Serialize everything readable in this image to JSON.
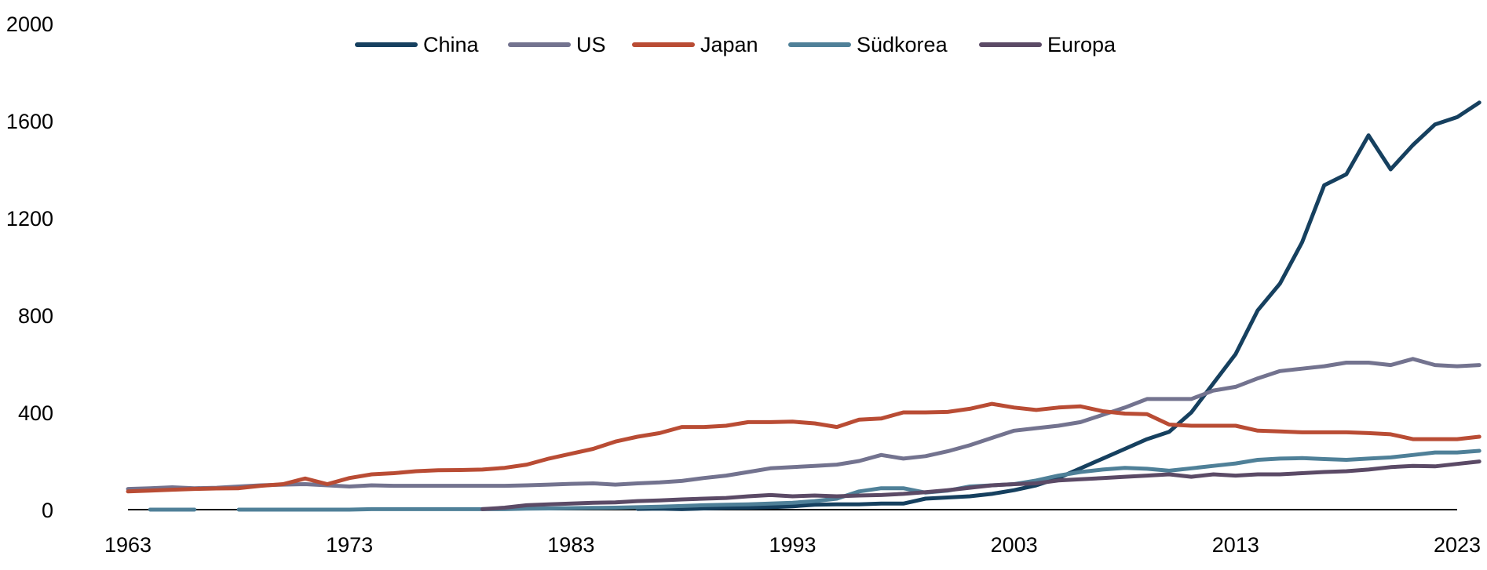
{
  "chart_data": {
    "type": "line",
    "title": "",
    "xlabel": "",
    "ylabel": "",
    "xlim": [
      1963,
      2023
    ],
    "ylim": [
      0,
      2000
    ],
    "x_ticks": [
      "1963",
      "1973",
      "1983",
      "1993",
      "2003",
      "2013",
      "2023"
    ],
    "y_ticks": [
      "0",
      "400",
      "800",
      "1200",
      "1600",
      "2000"
    ],
    "legend_position": "top-center",
    "grid": false,
    "series": [
      {
        "name": "China",
        "color": "#16405f",
        "points": [
          [
            1986,
            3
          ],
          [
            1987,
            4
          ],
          [
            1988,
            2
          ],
          [
            1989,
            5
          ],
          [
            1990,
            7
          ],
          [
            1991,
            8
          ],
          [
            1992,
            10
          ],
          [
            1993,
            14
          ],
          [
            1994,
            20
          ],
          [
            1995,
            22
          ],
          [
            1996,
            22
          ],
          [
            1997,
            25
          ],
          [
            1998,
            25
          ],
          [
            1999,
            45
          ],
          [
            2000,
            50
          ],
          [
            2001,
            55
          ],
          [
            2002,
            65
          ],
          [
            2003,
            80
          ],
          [
            2004,
            100
          ],
          [
            2005,
            130
          ],
          [
            2006,
            170
          ],
          [
            2007,
            210
          ],
          [
            2008,
            250
          ],
          [
            2009,
            290
          ],
          [
            2010,
            320
          ],
          [
            2011,
            400
          ],
          [
            2012,
            520
          ],
          [
            2013,
            640
          ],
          [
            2014,
            820
          ],
          [
            2015,
            930
          ],
          [
            2016,
            1100
          ],
          [
            2017,
            1335
          ],
          [
            2018,
            1380
          ],
          [
            2019,
            1540
          ],
          [
            2020,
            1400
          ],
          [
            2021,
            1500
          ],
          [
            2022,
            1585
          ],
          [
            2023,
            1615
          ],
          [
            2024,
            1675
          ]
        ]
      },
      {
        "name": "US",
        "color": "#73738f",
        "points": [
          [
            1963,
            85
          ],
          [
            1964,
            88
          ],
          [
            1965,
            92
          ],
          [
            1966,
            88
          ],
          [
            1967,
            90
          ],
          [
            1968,
            95
          ],
          [
            1969,
            100
          ],
          [
            1970,
            103
          ],
          [
            1971,
            105
          ],
          [
            1972,
            100
          ],
          [
            1973,
            95
          ],
          [
            1974,
            100
          ],
          [
            1975,
            98
          ],
          [
            1976,
            98
          ],
          [
            1977,
            98
          ],
          [
            1978,
            98
          ],
          [
            1979,
            98
          ],
          [
            1980,
            98
          ],
          [
            1981,
            100
          ],
          [
            1982,
            103
          ],
          [
            1983,
            106
          ],
          [
            1984,
            108
          ],
          [
            1985,
            103
          ],
          [
            1986,
            108
          ],
          [
            1987,
            112
          ],
          [
            1988,
            118
          ],
          [
            1989,
            130
          ],
          [
            1990,
            140
          ],
          [
            1991,
            155
          ],
          [
            1992,
            170
          ],
          [
            1993,
            175
          ],
          [
            1994,
            180
          ],
          [
            1995,
            185
          ],
          [
            1996,
            200
          ],
          [
            1997,
            225
          ],
          [
            1998,
            210
          ],
          [
            1999,
            220
          ],
          [
            2000,
            240
          ],
          [
            2001,
            265
          ],
          [
            2002,
            295
          ],
          [
            2003,
            325
          ],
          [
            2004,
            335
          ],
          [
            2005,
            345
          ],
          [
            2006,
            360
          ],
          [
            2007,
            390
          ],
          [
            2008,
            420
          ],
          [
            2009,
            455
          ],
          [
            2010,
            455
          ],
          [
            2011,
            455
          ],
          [
            2012,
            490
          ],
          [
            2013,
            505
          ],
          [
            2014,
            540
          ],
          [
            2015,
            570
          ],
          [
            2016,
            580
          ],
          [
            2017,
            590
          ],
          [
            2018,
            605
          ],
          [
            2019,
            605
          ],
          [
            2020,
            595
          ],
          [
            2021,
            620
          ],
          [
            2022,
            595
          ],
          [
            2023,
            590
          ],
          [
            2024,
            595
          ]
        ]
      },
      {
        "name": "Japan",
        "color": "#b94c34",
        "points": [
          [
            1963,
            75
          ],
          [
            1964,
            78
          ],
          [
            1965,
            82
          ],
          [
            1966,
            85
          ],
          [
            1967,
            87
          ],
          [
            1968,
            88
          ],
          [
            1969,
            98
          ],
          [
            1970,
            105
          ],
          [
            1971,
            128
          ],
          [
            1972,
            105
          ],
          [
            1973,
            130
          ],
          [
            1974,
            145
          ],
          [
            1975,
            150
          ],
          [
            1976,
            158
          ],
          [
            1977,
            162
          ],
          [
            1978,
            163
          ],
          [
            1979,
            165
          ],
          [
            1980,
            172
          ],
          [
            1981,
            185
          ],
          [
            1982,
            210
          ],
          [
            1983,
            230
          ],
          [
            1984,
            250
          ],
          [
            1985,
            280
          ],
          [
            1986,
            300
          ],
          [
            1987,
            315
          ],
          [
            1988,
            340
          ],
          [
            1989,
            340
          ],
          [
            1990,
            345
          ],
          [
            1991,
            360
          ],
          [
            1992,
            360
          ],
          [
            1993,
            362
          ],
          [
            1994,
            355
          ],
          [
            1995,
            340
          ],
          [
            1996,
            370
          ],
          [
            1997,
            375
          ],
          [
            1998,
            400
          ],
          [
            1999,
            400
          ],
          [
            2000,
            402
          ],
          [
            2001,
            415
          ],
          [
            2002,
            435
          ],
          [
            2003,
            420
          ],
          [
            2004,
            410
          ],
          [
            2005,
            420
          ],
          [
            2006,
            425
          ],
          [
            2007,
            405
          ],
          [
            2008,
            395
          ],
          [
            2009,
            393
          ],
          [
            2010,
            350
          ],
          [
            2011,
            345
          ],
          [
            2012,
            345
          ],
          [
            2013,
            345
          ],
          [
            2014,
            325
          ],
          [
            2015,
            322
          ],
          [
            2016,
            318
          ],
          [
            2017,
            318
          ],
          [
            2018,
            318
          ],
          [
            2019,
            315
          ],
          [
            2020,
            310
          ],
          [
            2021,
            290
          ],
          [
            2022,
            290
          ],
          [
            2023,
            290
          ],
          [
            2024,
            300
          ]
        ]
      },
      {
        "name": "Südkorea",
        "color": "#4f8098",
        "points": [
          [
            1964,
            0
          ],
          [
            1965,
            0
          ],
          [
            1966,
            0
          ],
          [
            1968,
            0
          ],
          [
            1969,
            0
          ],
          [
            1970,
            0
          ],
          [
            1971,
            0
          ],
          [
            1972,
            0
          ],
          [
            1973,
            0
          ],
          [
            1974,
            2
          ],
          [
            1975,
            2
          ],
          [
            1976,
            2
          ],
          [
            1977,
            2
          ],
          [
            1978,
            2
          ],
          [
            1979,
            2
          ],
          [
            1980,
            2
          ],
          [
            1981,
            4
          ],
          [
            1982,
            5
          ],
          [
            1983,
            6
          ],
          [
            1984,
            7
          ],
          [
            1985,
            8
          ],
          [
            1986,
            10
          ],
          [
            1987,
            12
          ],
          [
            1988,
            15
          ],
          [
            1989,
            18
          ],
          [
            1990,
            20
          ],
          [
            1991,
            22
          ],
          [
            1992,
            25
          ],
          [
            1993,
            28
          ],
          [
            1994,
            35
          ],
          [
            1995,
            45
          ],
          [
            1996,
            75
          ],
          [
            1997,
            88
          ],
          [
            1998,
            88
          ],
          [
            1999,
            70
          ],
          [
            2000,
            78
          ],
          [
            2001,
            95
          ],
          [
            2002,
            100
          ],
          [
            2003,
            105
          ],
          [
            2004,
            120
          ],
          [
            2005,
            140
          ],
          [
            2006,
            155
          ],
          [
            2007,
            165
          ],
          [
            2008,
            172
          ],
          [
            2009,
            168
          ],
          [
            2010,
            160
          ],
          [
            2011,
            170
          ],
          [
            2012,
            180
          ],
          [
            2013,
            190
          ],
          [
            2014,
            205
          ],
          [
            2015,
            210
          ],
          [
            2016,
            212
          ],
          [
            2017,
            208
          ],
          [
            2018,
            205
          ],
          [
            2019,
            210
          ],
          [
            2020,
            215
          ],
          [
            2021,
            225
          ],
          [
            2022,
            235
          ],
          [
            2023,
            235
          ],
          [
            2024,
            242
          ]
        ]
      },
      {
        "name": "Europa",
        "color": "#5b4a66",
        "points": [
          [
            1979,
            2
          ],
          [
            1980,
            8
          ],
          [
            1981,
            18
          ],
          [
            1982,
            22
          ],
          [
            1983,
            25
          ],
          [
            1984,
            28
          ],
          [
            1985,
            30
          ],
          [
            1986,
            35
          ],
          [
            1987,
            38
          ],
          [
            1988,
            42
          ],
          [
            1989,
            45
          ],
          [
            1990,
            48
          ],
          [
            1991,
            55
          ],
          [
            1992,
            60
          ],
          [
            1993,
            55
          ],
          [
            1994,
            58
          ],
          [
            1995,
            55
          ],
          [
            1996,
            58
          ],
          [
            1997,
            60
          ],
          [
            1998,
            65
          ],
          [
            1999,
            72
          ],
          [
            2000,
            80
          ],
          [
            2001,
            90
          ],
          [
            2002,
            100
          ],
          [
            2003,
            105
          ],
          [
            2004,
            108
          ],
          [
            2005,
            120
          ],
          [
            2006,
            125
          ],
          [
            2007,
            130
          ],
          [
            2008,
            135
          ],
          [
            2009,
            140
          ],
          [
            2010,
            145
          ],
          [
            2011,
            135
          ],
          [
            2012,
            145
          ],
          [
            2013,
            140
          ],
          [
            2014,
            145
          ],
          [
            2015,
            145
          ],
          [
            2016,
            150
          ],
          [
            2017,
            155
          ],
          [
            2018,
            158
          ],
          [
            2019,
            165
          ],
          [
            2020,
            175
          ],
          [
            2021,
            180
          ],
          [
            2022,
            178
          ],
          [
            2023,
            188
          ],
          [
            2024,
            198
          ]
        ]
      }
    ]
  }
}
